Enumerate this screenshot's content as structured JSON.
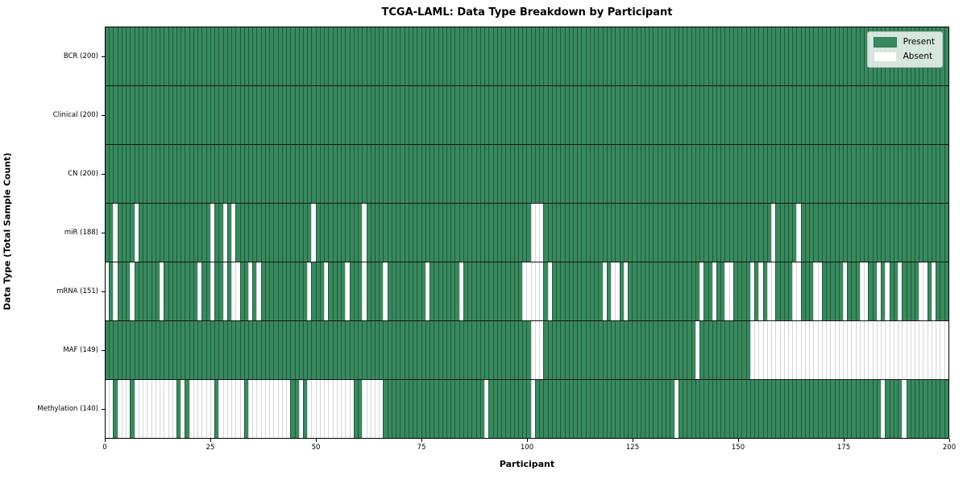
{
  "title": "TCGA-LAML: Data Type Breakdown by Participant",
  "x_axis": {
    "label": "Participant",
    "ticks": [
      0,
      25,
      50,
      75,
      100,
      125,
      150,
      175,
      200
    ],
    "min": 0,
    "max": 200
  },
  "y_axis": {
    "label": "Data Type (Total Sample Count)"
  },
  "legend": {
    "items": [
      {
        "label": "Present",
        "color": "#388a5e"
      },
      {
        "label": "Absent",
        "color": "#ffffff"
      }
    ]
  },
  "colors": {
    "present": "#388a5e",
    "absent": "#ffffff",
    "row_divider": "#151515",
    "plot_border": "#000000"
  },
  "chart_data": {
    "type": "heatmap",
    "xlabel": "Participant",
    "ylabel": "Data Type (Total Sample Count)",
    "title": "TCGA-LAML: Data Type Breakdown by Participant",
    "n_participants": 200,
    "xlim": [
      0,
      200
    ],
    "x_ticks": [
      0,
      25,
      50,
      75,
      100,
      125,
      150,
      175,
      200
    ],
    "legend_position": "upper right",
    "cell_states": [
      "Present",
      "Absent"
    ],
    "rows": [
      {
        "name": "bcr",
        "label": "BCR (200)",
        "present_count": 200,
        "absent_indices": []
      },
      {
        "name": "clinical",
        "label": "Clinical (200)",
        "present_count": 200,
        "absent_indices": []
      },
      {
        "name": "cn",
        "label": "CN (200)",
        "present_count": 200,
        "absent_indices": []
      },
      {
        "name": "mir",
        "label": "miR (188)",
        "present_count": 188,
        "absent_indices": [
          2,
          7,
          25,
          28,
          30,
          49,
          61,
          101,
          102,
          103,
          158,
          164
        ]
      },
      {
        "name": "mrna",
        "label": "mRNA (151)",
        "present_count": 151,
        "absent_indices": [
          0,
          2,
          6,
          13,
          22,
          25,
          28,
          30,
          31,
          34,
          36,
          48,
          52,
          57,
          61,
          66,
          76,
          84,
          99,
          100,
          101,
          102,
          103,
          105,
          118,
          120,
          121,
          123,
          141,
          144,
          147,
          148,
          153,
          155,
          157,
          158,
          163,
          164,
          168,
          169,
          175,
          179,
          180,
          183,
          185,
          188,
          193,
          194,
          196
        ]
      },
      {
        "name": "maf",
        "label": "MAF (149)",
        "present_count": 149,
        "absent_indices": [
          101,
          102,
          103,
          140,
          153,
          154,
          155,
          156,
          157,
          158,
          159,
          160,
          161,
          162,
          163,
          164,
          165,
          166,
          167,
          168,
          169,
          170,
          171,
          172,
          173,
          174,
          175,
          176,
          177,
          178,
          179,
          180,
          181,
          182,
          183,
          184,
          185,
          186,
          187,
          188,
          189,
          190,
          191,
          192,
          193,
          194,
          195,
          196,
          197,
          198,
          199
        ]
      },
      {
        "name": "methylation",
        "label": "Methylation (140)",
        "present_count": 140,
        "absent_indices": [
          0,
          1,
          3,
          4,
          5,
          7,
          8,
          9,
          10,
          11,
          12,
          13,
          14,
          15,
          16,
          18,
          20,
          21,
          22,
          23,
          24,
          25,
          27,
          28,
          29,
          30,
          31,
          32,
          34,
          35,
          36,
          37,
          38,
          39,
          40,
          41,
          42,
          43,
          46,
          48,
          49,
          50,
          51,
          52,
          53,
          54,
          55,
          56,
          57,
          58,
          61,
          62,
          63,
          64,
          65,
          90,
          101,
          135,
          184,
          189
        ]
      }
    ]
  }
}
